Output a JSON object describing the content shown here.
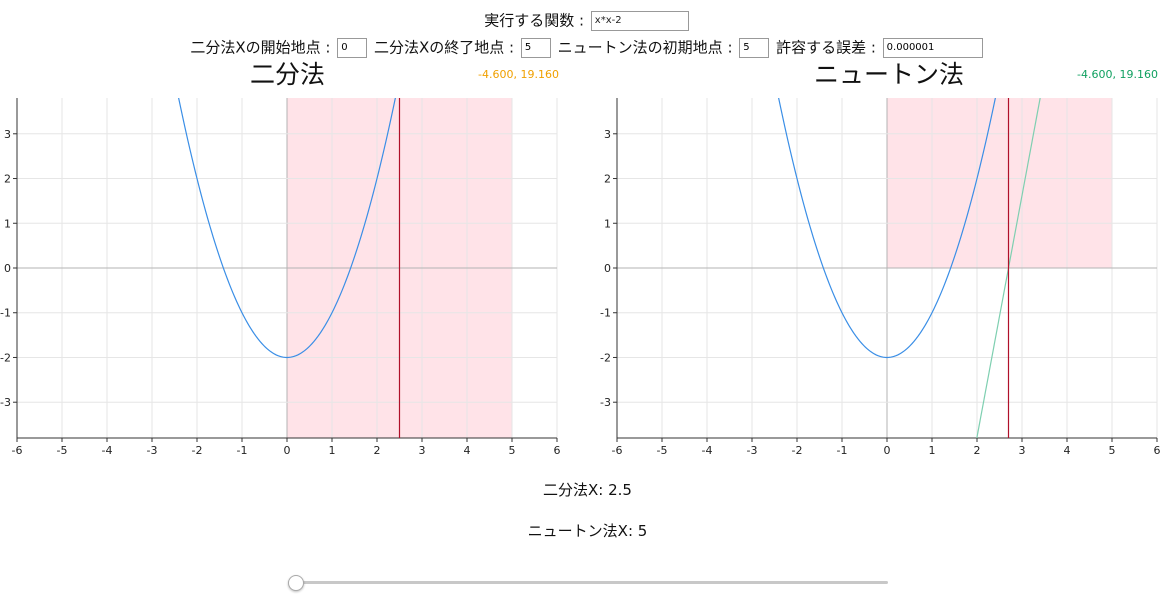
{
  "controls": {
    "function_label": "実行する関数 :",
    "function_value": "x*x-2",
    "bisect_start_label": "二分法Xの開始地点 :",
    "bisect_start_value": "0",
    "bisect_end_label": "二分法Xの終了地点 :",
    "bisect_end_value": "5",
    "newton_init_label": "ニュートン法の初期地点 :",
    "newton_init_value": "5",
    "tolerance_label": "許容する誤差 :",
    "tolerance_value": "0.000001"
  },
  "colors": {
    "curve": "#3a8ee6",
    "shade": "#ffe3e8",
    "marker": "#b0102a",
    "tangent": "#7ecfb0",
    "bisect_coord": "#f0a000",
    "newton_coord": "#10a060",
    "grid": "#e6e6e6",
    "axis": "#b3b3b3"
  },
  "chart_data": [
    {
      "type": "line",
      "title": "二分法",
      "coord_readout": "-4.600, 19.160",
      "function": "x*x-2",
      "xlim": [
        -6,
        6
      ],
      "ylim": [
        -3.8,
        3.8
      ],
      "xticks": [
        "-6",
        "-5",
        "-4",
        "-3",
        "-2",
        "-1",
        "0",
        "1",
        "2",
        "3",
        "4",
        "5",
        "6"
      ],
      "yticks": [
        "3",
        "2",
        "1",
        "0",
        "-1",
        "-2",
        "-3"
      ],
      "grid": true,
      "shade": {
        "x": [
          0,
          5
        ],
        "y": [
          -3.8,
          3.8
        ]
      },
      "marker_x": 2.5
    },
    {
      "type": "line",
      "title": "ニュートン法",
      "coord_readout": "-4.600, 19.160",
      "function": "x*x-2",
      "xlim": [
        -6,
        6
      ],
      "ylim": [
        -3.8,
        3.8
      ],
      "xticks": [
        "-6",
        "-5",
        "-4",
        "-3",
        "-2",
        "-1",
        "0",
        "1",
        "2",
        "3",
        "4",
        "5",
        "6"
      ],
      "yticks": [
        "3",
        "2",
        "1",
        "0",
        "-1",
        "-2",
        "-3"
      ],
      "grid": true,
      "shade": {
        "x": [
          0,
          5
        ],
        "y": [
          0,
          3.8
        ]
      },
      "marker_x": 2.7,
      "tangent": {
        "x0": 2.7,
        "slope": 5.4
      }
    }
  ],
  "results": {
    "bisect": "二分法X: 2.5",
    "newton": "ニュートン法X: 5"
  },
  "slider": {
    "value": 0
  }
}
